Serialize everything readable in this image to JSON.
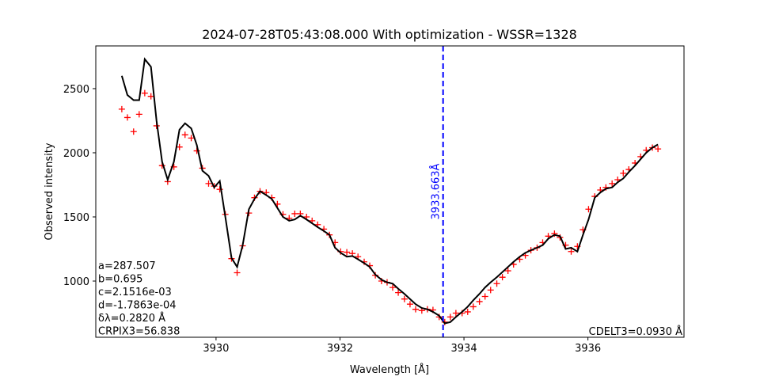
{
  "chart_data": {
    "type": "line",
    "title": "2024-07-28T05:43:08.000 With optimization - WSSR=1328",
    "xlabel": "Wavelength [Å]",
    "ylabel": "Observed intensity",
    "xlim": [
      3928.06,
      3937.55
    ],
    "ylim": [
      562,
      2833
    ],
    "xticks": [
      3930,
      3932,
      3934,
      3936
    ],
    "yticks": [
      1000,
      1500,
      2000,
      2500
    ],
    "x": [
      3928.48,
      3928.57,
      3928.67,
      3928.76,
      3928.85,
      3928.95,
      3929.04,
      3929.13,
      3929.22,
      3929.32,
      3929.41,
      3929.5,
      3929.6,
      3929.69,
      3929.78,
      3929.88,
      3929.97,
      3930.06,
      3930.15,
      3930.25,
      3930.34,
      3930.43,
      3930.53,
      3930.62,
      3930.71,
      3930.81,
      3930.9,
      3930.99,
      3931.08,
      3931.18,
      3931.27,
      3931.36,
      3931.46,
      3931.55,
      3931.64,
      3931.74,
      3931.83,
      3931.92,
      3932.01,
      3932.11,
      3932.2,
      3932.29,
      3932.39,
      3932.48,
      3932.57,
      3932.67,
      3932.76,
      3932.85,
      3932.94,
      3933.04,
      3933.13,
      3933.22,
      3933.32,
      3933.41,
      3933.5,
      3933.6,
      3933.69,
      3933.78,
      3933.87,
      3933.97,
      3934.06,
      3934.15,
      3934.25,
      3934.34,
      3934.43,
      3934.53,
      3934.62,
      3934.71,
      3934.8,
      3934.9,
      3934.99,
      3935.08,
      3935.18,
      3935.27,
      3935.36,
      3935.46,
      3935.55,
      3935.64,
      3935.73,
      3935.83,
      3935.92,
      3936.01,
      3936.11,
      3936.2,
      3936.29,
      3936.39,
      3936.48,
      3936.57,
      3936.66,
      3936.76,
      3936.85,
      3936.94,
      3937.04,
      3937.13
    ],
    "series": [
      {
        "color": "#ff0000",
        "mode": "markers",
        "values": [
          2340,
          2275,
          2165,
          2300,
          2465,
          2440,
          2210,
          1900,
          1775,
          1890,
          2045,
          2140,
          2115,
          2015,
          1880,
          1760,
          1740,
          1715,
          1520,
          1175,
          1065,
          1275,
          1530,
          1650,
          1700,
          1690,
          1650,
          1600,
          1520,
          1490,
          1525,
          1525,
          1500,
          1470,
          1440,
          1405,
          1360,
          1300,
          1230,
          1225,
          1215,
          1190,
          1150,
          1120,
          1045,
          1000,
          990,
          950,
          910,
          860,
          820,
          780,
          770,
          780,
          775,
          720,
          680,
          720,
          750,
          750,
          760,
          800,
          840,
          880,
          930,
          980,
          1030,
          1080,
          1130,
          1170,
          1200,
          1240,
          1260,
          1300,
          1350,
          1370,
          1340,
          1280,
          1230,
          1270,
          1400,
          1560,
          1660,
          1710,
          1730,
          1760,
          1790,
          1840,
          1870,
          1920,
          1970,
          2020,
          2040,
          2030
        ]
      },
      {
        "color": "#000000",
        "mode": "lines",
        "values": [
          2600,
          2450,
          2410,
          2410,
          2730,
          2670,
          2250,
          1930,
          1790,
          1930,
          2180,
          2230,
          2190,
          2060,
          1860,
          1820,
          1730,
          1780,
          1500,
          1180,
          1110,
          1280,
          1560,
          1640,
          1700,
          1670,
          1640,
          1570,
          1500,
          1470,
          1480,
          1510,
          1480,
          1450,
          1420,
          1390,
          1360,
          1260,
          1220,
          1190,
          1195,
          1170,
          1140,
          1110,
          1050,
          1010,
          990,
          980,
          940,
          900,
          860,
          820,
          790,
          780,
          760,
          730,
          670,
          680,
          720,
          760,
          800,
          850,
          900,
          950,
          990,
          1030,
          1070,
          1110,
          1150,
          1190,
          1220,
          1240,
          1260,
          1280,
          1330,
          1360,
          1350,
          1250,
          1260,
          1230,
          1360,
          1480,
          1650,
          1690,
          1720,
          1730,
          1770,
          1800,
          1850,
          1900,
          1950,
          2000,
          2040,
          2065
        ]
      }
    ],
    "vline": {
      "value": 3933.663,
      "label": "3933.663Å",
      "color": "#0000ff"
    },
    "annotations_left": [
      "a=287.507",
      "b=0.695",
      "c=2.1516e-03",
      "d=-1.7863e-04",
      "δλ=0.2820 Å",
      "CRPIX3=56.838"
    ],
    "annotation_right": "CDELT3=0.0930 Å"
  }
}
